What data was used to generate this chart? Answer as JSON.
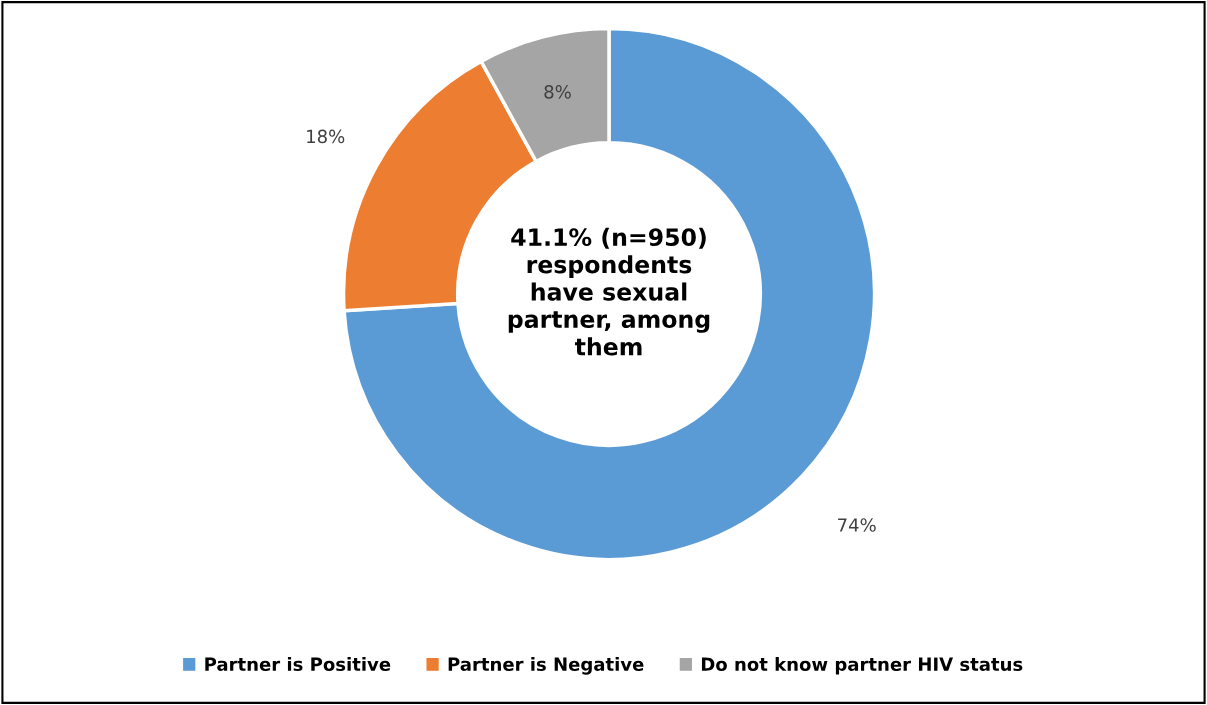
{
  "chart_data": {
    "type": "donut",
    "categories": [
      "Partner is Positive",
      "Partner is Negative",
      "Do not know partner HIV status"
    ],
    "values": [
      74,
      18,
      8
    ],
    "colors": [
      "#5b9bd5",
      "#ed7d31",
      "#a5a5a5"
    ],
    "value_labels": [
      "74%",
      "18%",
      "8%"
    ],
    "annotations": [
      "41.1% (n=950)\nrespondents\nhave sexual\npartner, among\nthem"
    ],
    "legend": "bottom"
  }
}
